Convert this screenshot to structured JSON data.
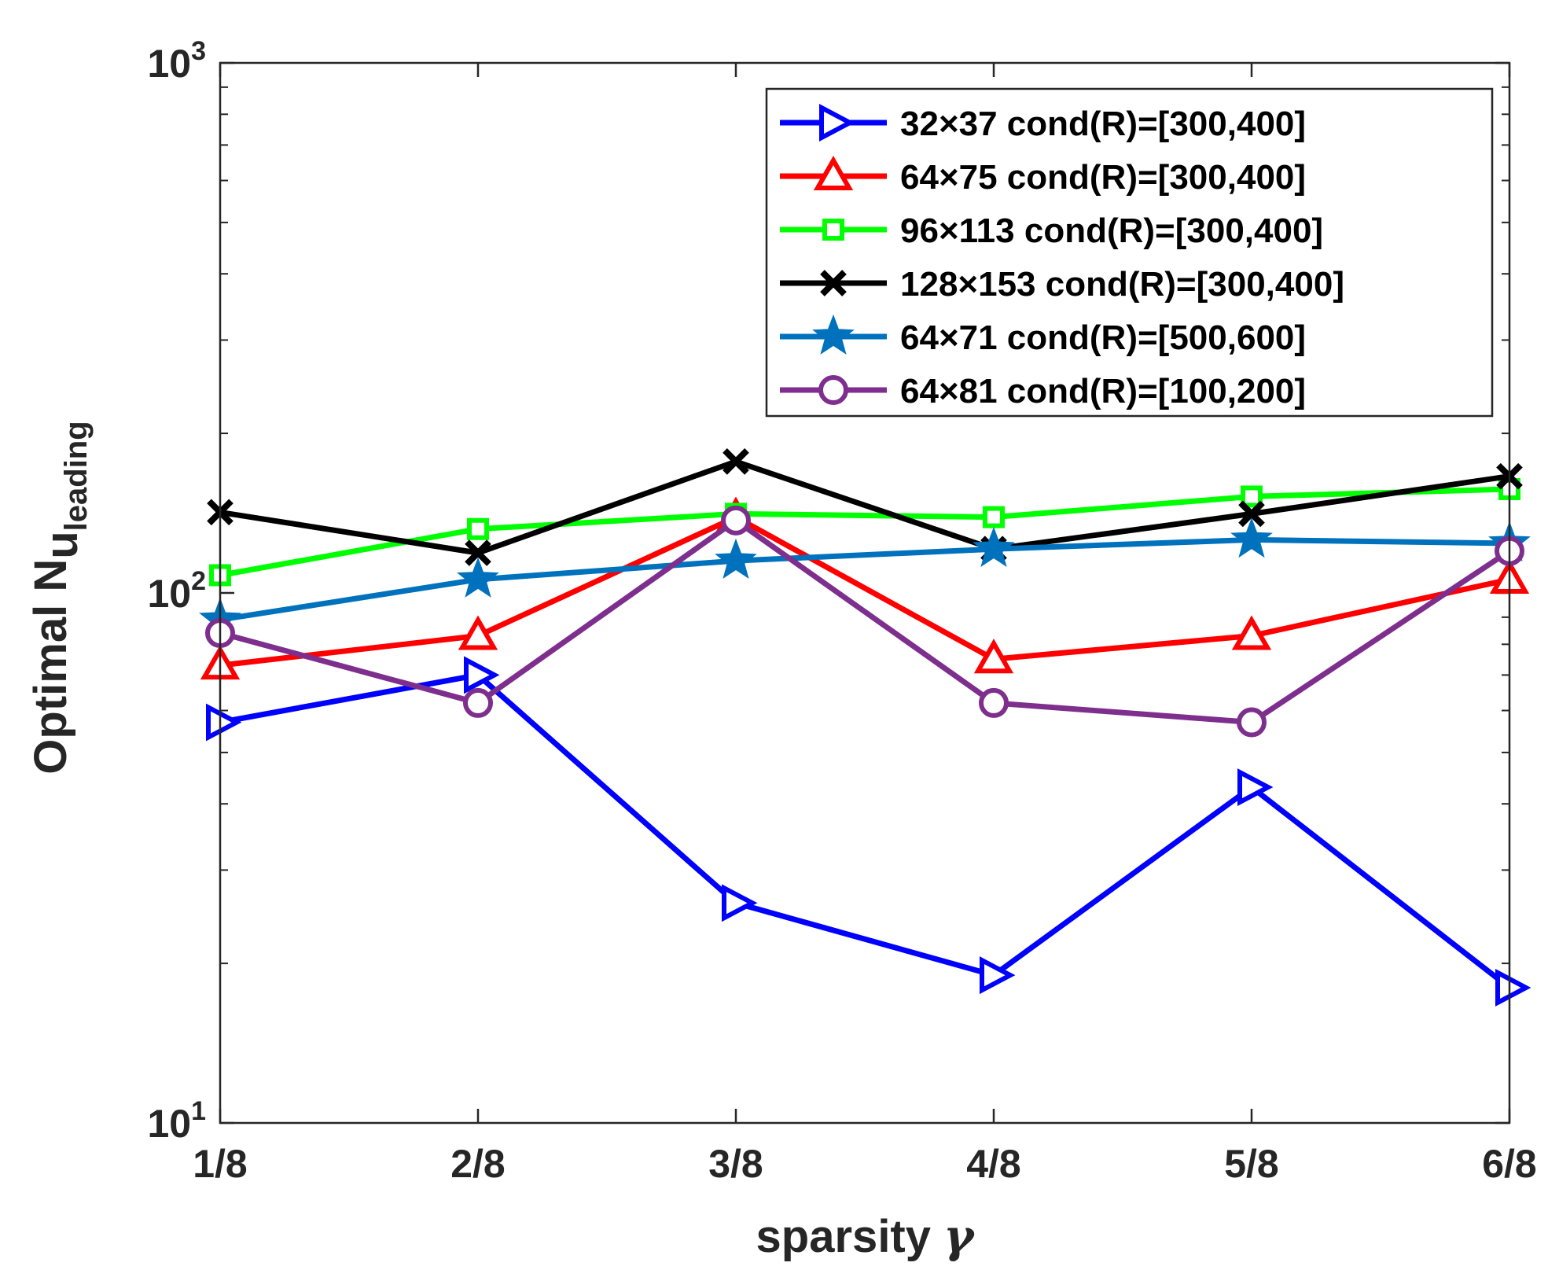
{
  "chart_data": {
    "type": "line",
    "title": "",
    "xlabel": "sparsity",
    "xlabel_symbol": "γ",
    "ylabel": "Optimal N",
    "ylabel_sub1": "u",
    "ylabel_sub2": "leading",
    "yscale": "log",
    "ylim": [
      10,
      1000
    ],
    "y_ticks": [
      {
        "base": "10",
        "exp": "1",
        "value": 10
      },
      {
        "base": "10",
        "exp": "2",
        "value": 100
      },
      {
        "base": "10",
        "exp": "3",
        "value": 1000
      }
    ],
    "categories": [
      "1/8",
      "2/8",
      "3/8",
      "4/8",
      "5/8",
      "6/8"
    ],
    "legend_position": "top-right",
    "series": [
      {
        "name": "32×37 cond(R)=[300,400]",
        "color": "#0000ff",
        "marker": "triangle-right",
        "values": [
          57,
          70,
          26,
          19,
          43,
          18
        ]
      },
      {
        "name": "64×75 cond(R)=[300,400]",
        "color": "#ff0000",
        "marker": "triangle-up",
        "values": [
          73,
          83,
          139,
          75,
          83,
          106
        ]
      },
      {
        "name": "96×113 cond(R)=[300,400]",
        "color": "#00ff00",
        "marker": "square",
        "values": [
          108,
          132,
          141,
          139,
          152,
          157
        ]
      },
      {
        "name": "128×153 cond(R)=[300,400]",
        "color": "#000000",
        "marker": "x",
        "values": [
          142,
          119,
          177,
          121,
          141,
          166
        ]
      },
      {
        "name": "64×71 cond(R)=[500,600]",
        "color": "#0072bd",
        "marker": "star",
        "values": [
          89,
          106,
          115,
          121,
          126,
          124
        ]
      },
      {
        "name": "64×81 cond(R)=[100,200]",
        "color": "#7e2f8e",
        "marker": "circle",
        "values": [
          84,
          62,
          137,
          62,
          57,
          120
        ]
      }
    ]
  }
}
